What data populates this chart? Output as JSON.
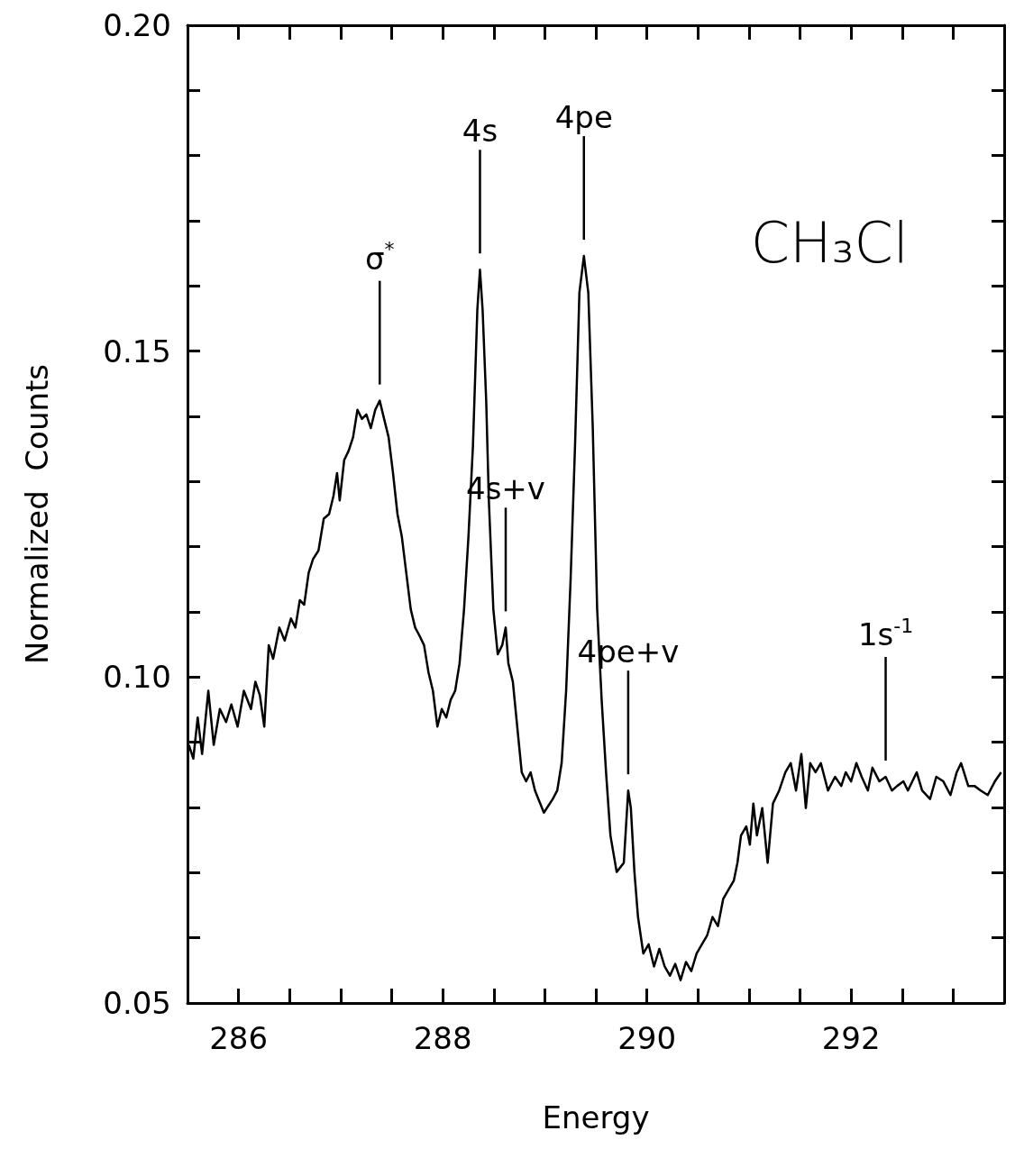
{
  "chart_data": {
    "type": "line",
    "xlabel": "Energy",
    "ylabel": "Normalized  Counts",
    "color": "#000000",
    "marker": "none",
    "line_style": "solid",
    "grid": false,
    "xlim": [
      285.5,
      293.5
    ],
    "ylim": [
      0.05,
      0.2
    ],
    "xticks": [
      {
        "value": 285.5,
        "label": null
      },
      286,
      {
        "value": 286.5,
        "label": null
      },
      {
        "value": 287,
        "label": null
      },
      {
        "value": 287.5,
        "label": null
      },
      288,
      {
        "value": 288.5,
        "label": null
      },
      {
        "value": 289,
        "label": null
      },
      {
        "value": 289.5,
        "label": null
      },
      290,
      {
        "value": 290.5,
        "label": null
      },
      {
        "value": 291,
        "label": null
      },
      {
        "value": 291.5,
        "label": null
      },
      292,
      {
        "value": 292.5,
        "label": null
      },
      {
        "value": 293,
        "label": null
      }
    ],
    "yticks": [
      0.05,
      {
        "value": 0.06,
        "label": null
      },
      {
        "value": 0.07,
        "label": null
      },
      {
        "value": 0.08,
        "label": null
      },
      {
        "value": 0.09,
        "label": null
      },
      {
        "value": 0.1,
        "label": "0.10"
      },
      {
        "value": 0.11,
        "label": null
      },
      {
        "value": 0.12,
        "label": null
      },
      {
        "value": 0.13,
        "label": null
      },
      {
        "value": 0.14,
        "label": null
      },
      0.15,
      {
        "value": 0.16,
        "label": null
      },
      {
        "value": 0.17,
        "label": null
      },
      {
        "value": 0.18,
        "label": null
      },
      {
        "value": 0.19,
        "label": null
      },
      {
        "value": 0.2,
        "label": "0.20"
      }
    ],
    "annotations": [
      {
        "text": "σ$^{*}$",
        "x": 287.383
      },
      {
        "text": "4s",
        "x": 288.365
      },
      {
        "text": "4pe",
        "x": 289.383
      },
      {
        "text": "4s+v",
        "x": 288.617
      },
      {
        "text": "4pe+v",
        "x": 289.817
      },
      {
        "text": "1s$^{-1}$",
        "x": 292.339
      },
      "CH₃Cl"
    ],
    "x": [
      285.513,
      285.557,
      285.6,
      285.643,
      285.704,
      285.757,
      285.817,
      285.878,
      285.93,
      285.991,
      286.052,
      286.122,
      286.165,
      286.209,
      286.252,
      286.296,
      286.339,
      286.4,
      286.452,
      286.513,
      286.557,
      286.6,
      286.643,
      286.687,
      286.73,
      286.783,
      286.835,
      286.887,
      286.93,
      286.965,
      286.991,
      287.035,
      287.078,
      287.122,
      287.165,
      287.209,
      287.252,
      287.296,
      287.339,
      287.383,
      287.426,
      287.47,
      287.513,
      287.557,
      287.6,
      287.643,
      287.687,
      287.73,
      287.774,
      287.817,
      287.861,
      287.904,
      287.948,
      287.991,
      288.035,
      288.078,
      288.122,
      288.165,
      288.209,
      288.252,
      288.296,
      288.339,
      288.365,
      288.391,
      288.426,
      288.452,
      288.496,
      288.539,
      288.583,
      288.617,
      288.643,
      288.687,
      288.73,
      288.774,
      288.817,
      288.861,
      288.904,
      288.991,
      289.078,
      289.122,
      289.165,
      289.209,
      289.252,
      289.296,
      289.339,
      289.383,
      289.426,
      289.47,
      289.513,
      289.557,
      289.6,
      289.643,
      289.704,
      289.774,
      289.817,
      289.843,
      289.878,
      289.913,
      289.965,
      290.017,
      290.07,
      290.122,
      290.174,
      290.226,
      290.278,
      290.33,
      290.383,
      290.435,
      290.487,
      290.539,
      290.591,
      290.643,
      290.696,
      290.748,
      290.8,
      290.852,
      290.887,
      290.922,
      290.974,
      291.009,
      291.043,
      291.078,
      291.13,
      291.183,
      291.235,
      291.296,
      291.357,
      291.409,
      291.461,
      291.513,
      291.557,
      291.6,
      291.652,
      291.704,
      291.774,
      291.843,
      291.904,
      291.948,
      292.0,
      292.052,
      292.104,
      292.165,
      292.209,
      292.278,
      292.339,
      292.4,
      292.452,
      292.513,
      292.557,
      292.643,
      292.696,
      292.774,
      292.835,
      292.904,
      292.974,
      293.035,
      293.078,
      293.148,
      293.209,
      293.27,
      293.339,
      293.409,
      293.47
    ],
    "values": [
      0.0896,
      0.0875,
      0.0938,
      0.0882,
      0.0979,
      0.0896,
      0.0951,
      0.0931,
      0.0958,
      0.0924,
      0.0979,
      0.0951,
      0.0993,
      0.0972,
      0.0924,
      0.1049,
      0.1028,
      0.1076,
      0.1056,
      0.109,
      0.1076,
      0.1118,
      0.1111,
      0.116,
      0.1181,
      0.1194,
      0.1243,
      0.125,
      0.1278,
      0.1313,
      0.1271,
      0.1333,
      0.1347,
      0.1368,
      0.141,
      0.1396,
      0.1403,
      0.1382,
      0.141,
      0.1424,
      0.1396,
      0.1368,
      0.1313,
      0.125,
      0.1215,
      0.116,
      0.1104,
      0.1076,
      0.1063,
      0.1049,
      0.1007,
      0.0979,
      0.0924,
      0.0951,
      0.0938,
      0.0965,
      0.0979,
      0.1021,
      0.1104,
      0.1215,
      0.1354,
      0.1563,
      0.1625,
      0.1563,
      0.1424,
      0.1271,
      0.1104,
      0.1035,
      0.1049,
      0.1076,
      0.1021,
      0.0993,
      0.0924,
      0.0854,
      0.084,
      0.0854,
      0.0826,
      0.0792,
      0.0813,
      0.0826,
      0.0868,
      0.0979,
      0.1146,
      0.1354,
      0.159,
      0.1646,
      0.159,
      0.1382,
      0.1104,
      0.0965,
      0.0854,
      0.0757,
      0.0701,
      0.0715,
      0.0826,
      0.0799,
      0.0701,
      0.0632,
      0.0576,
      0.059,
      0.0556,
      0.0583,
      0.0556,
      0.0542,
      0.056,
      0.0535,
      0.0563,
      0.0549,
      0.0576,
      0.059,
      0.0604,
      0.0632,
      0.0618,
      0.066,
      0.0674,
      0.0688,
      0.0715,
      0.0757,
      0.0771,
      0.0743,
      0.0806,
      0.0757,
      0.0799,
      0.0715,
      0.0806,
      0.0826,
      0.0854,
      0.0868,
      0.0826,
      0.0882,
      0.0799,
      0.0868,
      0.0854,
      0.0868,
      0.0826,
      0.0847,
      0.0833,
      0.0854,
      0.084,
      0.0868,
      0.0847,
      0.0826,
      0.0861,
      0.084,
      0.0847,
      0.0826,
      0.0833,
      0.084,
      0.0826,
      0.0854,
      0.0826,
      0.0813,
      0.0847,
      0.084,
      0.0819,
      0.0854,
      0.0868,
      0.0833,
      0.0833,
      0.0826,
      0.0819,
      0.084,
      0.0854
    ]
  }
}
